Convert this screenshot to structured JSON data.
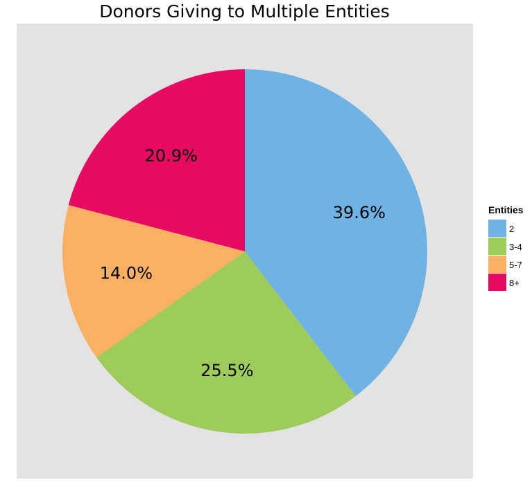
{
  "chart_data": {
    "type": "pie",
    "title": "Donors Giving to Multiple Entities",
    "legend_title": "Entities",
    "legend_position": "right",
    "start_angle_deg": 0,
    "direction": "clockwise",
    "slices": [
      {
        "label": "2",
        "value": 39.6,
        "display": "39.6%",
        "color": "#6fb2e4"
      },
      {
        "label": "3-4",
        "value": 25.5,
        "display": "25.5%",
        "color": "#9dcc5a"
      },
      {
        "label": "5-7",
        "value": 14.0,
        "display": "14.0%",
        "color": "#f9b062"
      },
      {
        "label": "8+",
        "value": 20.9,
        "display": "20.9%",
        "color": "#e70a62"
      }
    ]
  }
}
